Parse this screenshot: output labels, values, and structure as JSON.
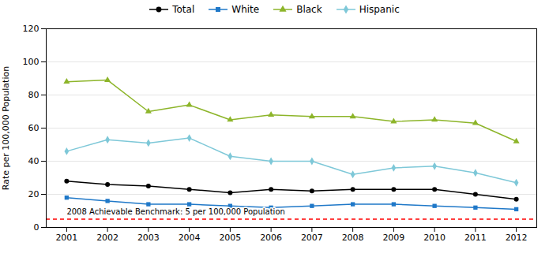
{
  "chart_data": {
    "type": "line",
    "x": [
      2001,
      2002,
      2003,
      2004,
      2005,
      2006,
      2007,
      2008,
      2009,
      2010,
      2011,
      2012
    ],
    "xlim": [
      2000.5,
      2012.5
    ],
    "xticks": [
      2001,
      2002,
      2003,
      2004,
      2005,
      2006,
      2007,
      2008,
      2009,
      2010,
      2011,
      2012
    ],
    "ylim": [
      0,
      120
    ],
    "yticks": [
      0,
      20,
      40,
      60,
      80,
      100,
      120
    ],
    "ylabel": "Rate per 100,000 Population",
    "grid": true,
    "legend": "top",
    "series": [
      {
        "name": "Total",
        "color": "#000000",
        "marker": "circle",
        "values": [
          28,
          26,
          25,
          23,
          21,
          23,
          22,
          23,
          23,
          23,
          20,
          17
        ]
      },
      {
        "name": "White",
        "color": "#1F78C8",
        "marker": "square",
        "values": [
          18,
          16,
          14,
          14,
          13,
          12,
          13,
          14,
          14,
          13,
          12,
          11
        ]
      },
      {
        "name": "Black",
        "color": "#8DB52A",
        "marker": "triangle",
        "values": [
          88,
          89,
          70,
          74,
          65,
          68,
          67,
          67,
          64,
          65,
          63,
          52
        ]
      },
      {
        "name": "Hispanic",
        "color": "#7EC8D8",
        "marker": "diamond",
        "values": [
          46,
          53,
          51,
          54,
          43,
          40,
          40,
          32,
          36,
          37,
          33,
          27
        ]
      }
    ],
    "reference_line": {
      "y": 5,
      "label": "2008 Achievable Benchmark: 5 per 100,000 Population",
      "color": "#FF0000",
      "line_style": "dashed"
    }
  }
}
